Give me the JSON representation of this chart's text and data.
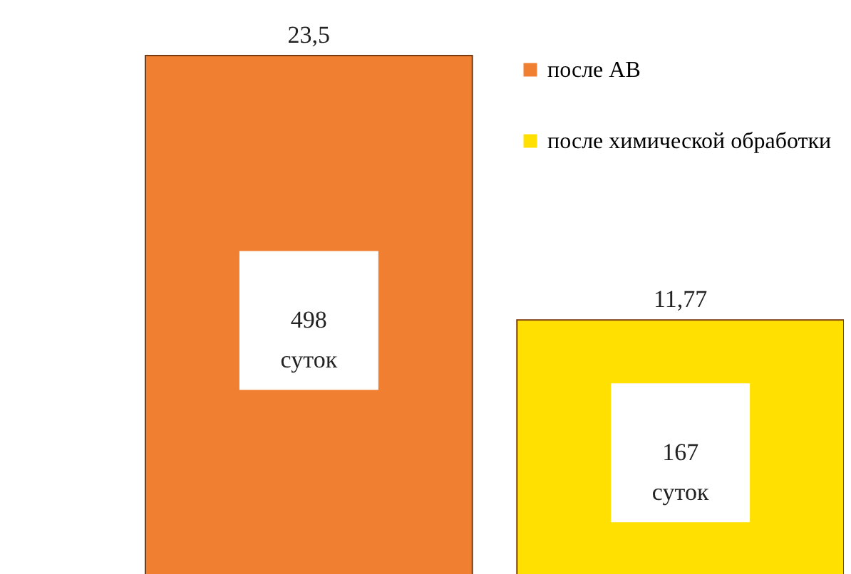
{
  "chart_data": {
    "type": "bar",
    "categories": [
      null
    ],
    "series": [
      {
        "name": "после АВ",
        "color": "#f07f32",
        "values": [
          23.5
        ],
        "value_labels": [
          "23,5"
        ]
      },
      {
        "name": "после химической обработки",
        "color": "#ffe000",
        "values": [
          11.77
        ],
        "value_labels": [
          "11,77"
        ]
      }
    ],
    "annotations": [
      "498 суток",
      "167 суток"
    ],
    "legend": "top right",
    "grid": false,
    "tick_labels": false
  }
}
